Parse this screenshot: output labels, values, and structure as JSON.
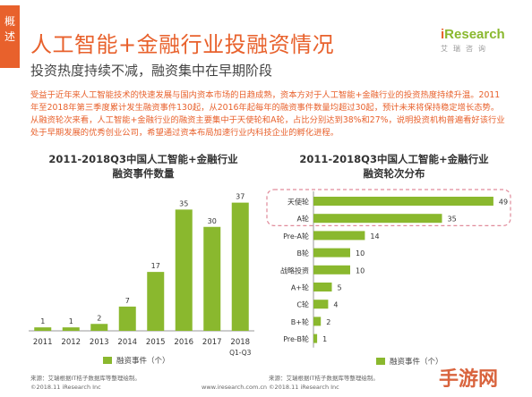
{
  "header": {
    "side_tab": "概述",
    "title": "人工智能+金融行业投融资情况",
    "subtitle": "投资热度持续不减，融资集中在早期阶段",
    "logo_text": "Research",
    "logo_prefix": "i",
    "logo_sub": "艾瑞咨询"
  },
  "description": "受益于近年来人工智能技术的快速发展与国内资本市场的日趋成熟，资本方对于人工智能+金融行业的投资热度持续升温。2011年至2018年第三季度累计发生融资事件130起，从2016年起每年的融资事件数量均超过30起，预计未来将保持稳定增长态势。从融资轮次来看，人工智能+金融行业的融资主要集中于天使轮和A轮，占比分别达到38%和27%，说明投资机构普遍看好该行业处于早期发展的优秀创业公司，希望通过资本布局加速行业内科技企业的孵化进程。",
  "colors": {
    "accent": "#e8612c",
    "bar": "#8ab82e",
    "highlight_border": "#e08a9a"
  },
  "charts": {
    "left": {
      "title_line1": "2011-2018Q3中国人工智能+金融行业",
      "title_line2": "融资事件数量",
      "legend": "融资事件（个）",
      "extra_tick": "Q1-Q3",
      "source": "来源：艾瑞根据IT桔子数据库等整理绘制。",
      "footer": "©2018.11 iResearch Inc"
    },
    "right": {
      "title_line1": "2011-2018Q3中国人工智能+金融行业",
      "title_line2": "融资轮次分布",
      "legend": "融资事件（个）",
      "source": "来源：艾瑞根据IT桔子数据库等整理绘制。",
      "footer": "©2018.11 iResearch Inc"
    },
    "center_footer": "www.iresearch.com.cn"
  },
  "chart_data": [
    {
      "type": "bar",
      "title": "2011-2018Q3中国人工智能+金融行业融资事件数量",
      "categories": [
        "2011",
        "2012",
        "2013",
        "2014",
        "2015",
        "2016",
        "2017",
        "2018"
      ],
      "series": [
        {
          "name": "融资事件（个）",
          "values": [
            1,
            1,
            2,
            7,
            17,
            35,
            30,
            37
          ]
        }
      ],
      "ylim": [
        0,
        40
      ],
      "grid": false,
      "legend_position": "bottom"
    },
    {
      "type": "bar",
      "orientation": "horizontal",
      "title": "2011-2018Q3中国人工智能+金融行业融资轮次分布",
      "categories": [
        "天使轮",
        "A轮",
        "Pre-A轮",
        "B轮",
        "战略投资",
        "A+轮",
        "C轮",
        "B+轮",
        "Pre-B轮"
      ],
      "series": [
        {
          "name": "融资事件（个）",
          "values": [
            49,
            35,
            14,
            10,
            10,
            5,
            4,
            2,
            1
          ]
        }
      ],
      "xlim": [
        0,
        50
      ],
      "grid": false,
      "legend_position": "bottom",
      "highlighted": [
        "天使轮",
        "A轮"
      ]
    }
  ]
}
